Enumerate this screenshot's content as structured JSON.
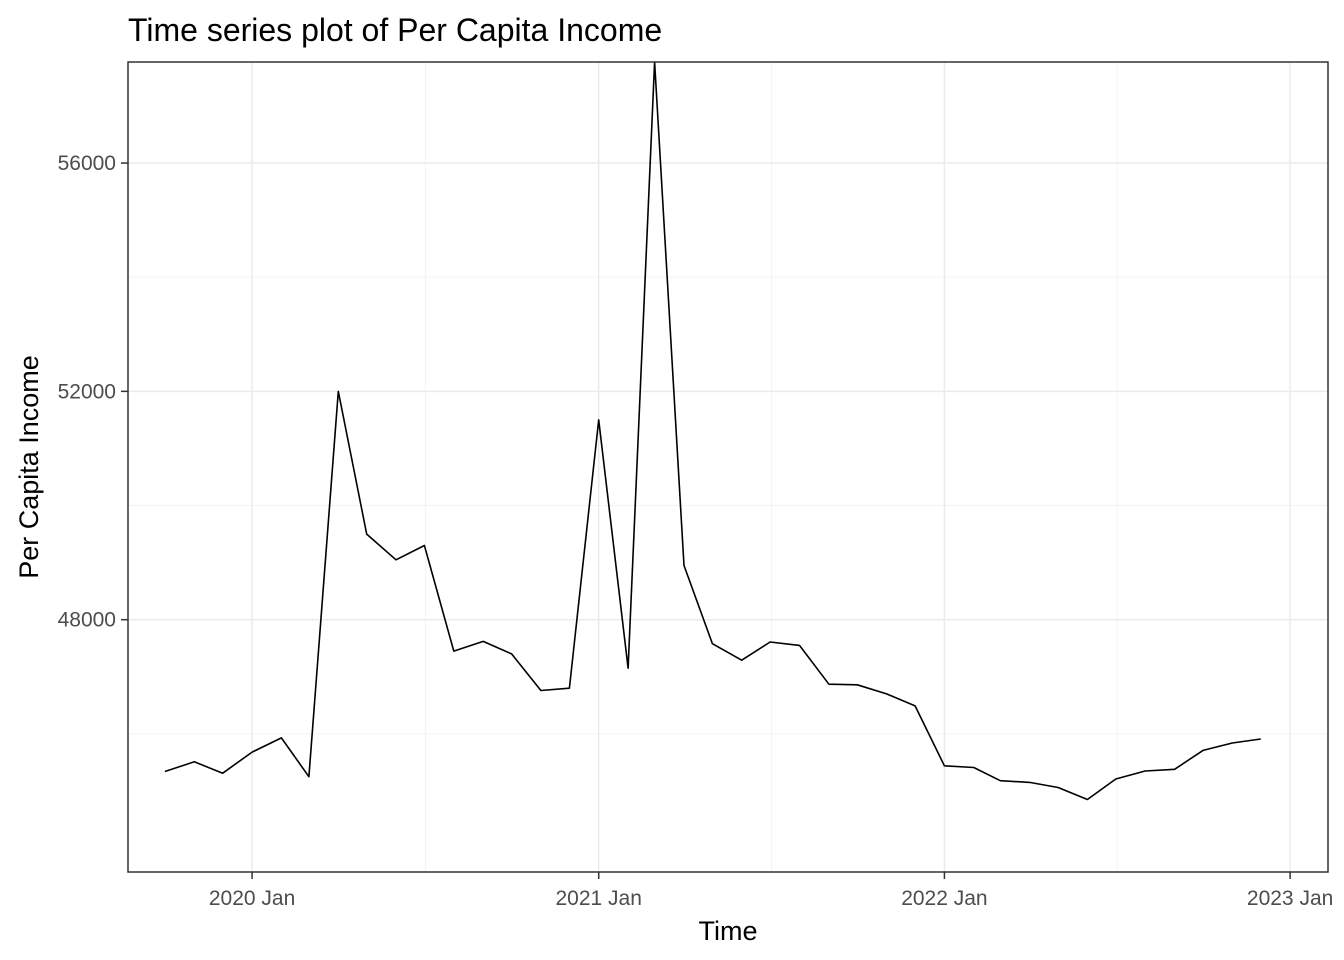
{
  "chart_data": {
    "type": "line",
    "title": "Time series plot of Per Capita Income",
    "xlabel": "Time",
    "ylabel": "Per Capita Income",
    "grid": true,
    "x_ticks": [
      {
        "date": "2020-01-01",
        "label": "2020 Jan"
      },
      {
        "date": "2021-01-01",
        "label": "2021 Jan"
      },
      {
        "date": "2022-01-01",
        "label": "2022 Jan"
      },
      {
        "date": "2023-01-01",
        "label": "2023 Jan"
      }
    ],
    "y_ticks": [
      48000,
      52000,
      56000
    ],
    "ylim": [
      43580,
      57770
    ],
    "xlim": [
      "2019-08-23",
      "2023-02-10"
    ],
    "series": [
      {
        "color": "#000000",
        "x": [
          "2019-10-01",
          "2019-11-01",
          "2019-12-01",
          "2020-01-01",
          "2020-02-01",
          "2020-03-01",
          "2020-04-01",
          "2020-05-01",
          "2020-06-01",
          "2020-07-01",
          "2020-08-01",
          "2020-09-01",
          "2020-10-01",
          "2020-11-01",
          "2020-12-01",
          "2021-01-01",
          "2021-02-01",
          "2021-03-01",
          "2021-04-01",
          "2021-05-01",
          "2021-06-01",
          "2021-07-01",
          "2021-08-01",
          "2021-09-01",
          "2021-10-01",
          "2021-11-01",
          "2021-12-01",
          "2022-01-01",
          "2022-02-01",
          "2022-03-01",
          "2022-04-01",
          "2022-05-01",
          "2022-06-01",
          "2022-07-01",
          "2022-08-01",
          "2022-09-01",
          "2022-10-01",
          "2022-11-01",
          "2022-12-01"
        ],
        "values": [
          45340,
          45510,
          45310,
          45680,
          45930,
          45250,
          52000,
          49500,
          49050,
          49300,
          47450,
          47620,
          47400,
          46760,
          46800,
          51500,
          47150,
          57770,
          48950,
          47580,
          47290,
          47610,
          47550,
          46870,
          46860,
          46700,
          46490,
          45440,
          45410,
          45180,
          45150,
          45060,
          44850,
          45210,
          45350,
          45380,
          45710,
          45840,
          45910
        ]
      }
    ]
  }
}
